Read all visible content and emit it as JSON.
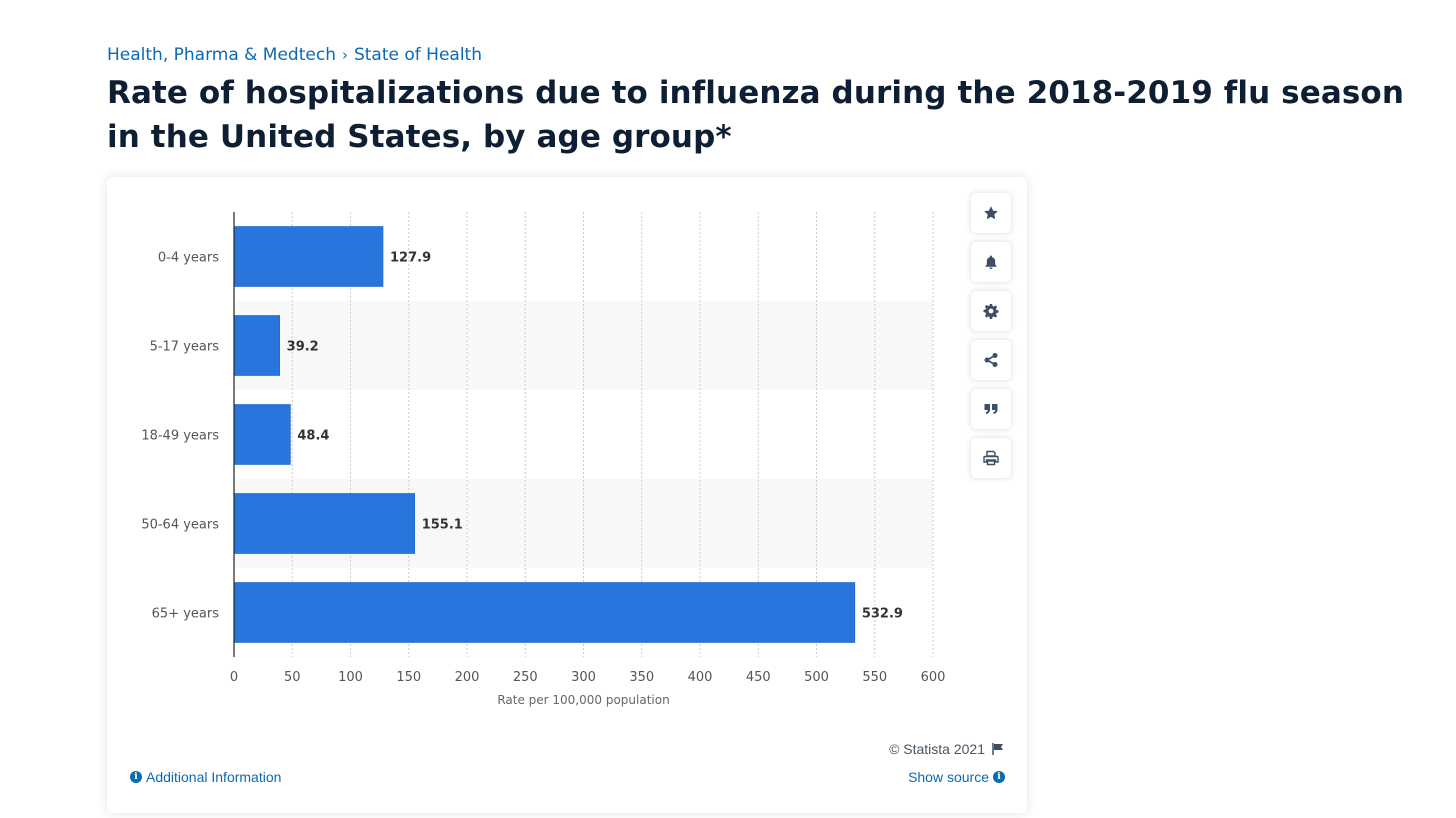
{
  "breadcrumb": {
    "items": [
      "Health, Pharma & Medtech",
      "State of Health"
    ],
    "separator": "›"
  },
  "title": "Rate of hospitalizations due to influenza during the 2018-2019 flu season in the United States, by age group*",
  "toolbar": {
    "items": [
      "star-icon",
      "bell-icon",
      "gear-icon",
      "share-icon",
      "quote-icon",
      "print-icon"
    ]
  },
  "footer": {
    "copyright": "© Statista 2021",
    "additional_info": "Additional Information",
    "show_source": "Show source"
  },
  "colors": {
    "bar": "#2876dd",
    "link": "#0b6ab1",
    "title": "#0f1f33",
    "band": "#f8f8f8",
    "grid": "#c9ccd1"
  },
  "chart_data": {
    "type": "bar",
    "orientation": "horizontal",
    "categories": [
      "0-4 years",
      "5-17 years",
      "18-49 years",
      "50-64 years",
      "65+ years"
    ],
    "values": [
      127.9,
      39.2,
      48.4,
      155.1,
      532.9
    ],
    "value_labels": [
      "127.9",
      "39.2",
      "48.4",
      "155.1",
      "532.9"
    ],
    "xlabel": "Rate per 100,000 population",
    "ylabel": "",
    "xlim": [
      0,
      600
    ],
    "ticks": [
      0,
      50,
      100,
      150,
      200,
      250,
      300,
      350,
      400,
      450,
      500,
      550,
      600
    ],
    "grid": true,
    "legend": "none"
  }
}
